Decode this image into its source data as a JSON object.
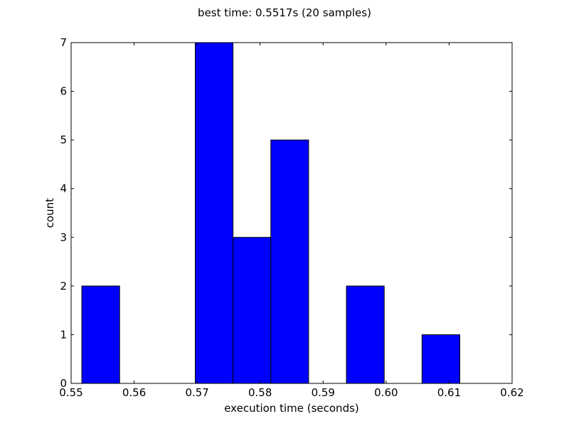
{
  "chart_data": {
    "type": "bar",
    "title": "best time: 0.5517s (20 samples)",
    "xlabel": "execution time (seconds)",
    "ylabel": "count",
    "xlim": [
      0.55,
      0.62
    ],
    "ylim": [
      0,
      7
    ],
    "xticks": [
      "0.55",
      "0.56",
      "0.57",
      "0.58",
      "0.59",
      "0.60",
      "0.61",
      "0.62"
    ],
    "yticks": [
      "0",
      "1",
      "2",
      "3",
      "4",
      "5",
      "6",
      "7"
    ],
    "bins": [
      {
        "start": 0.5517,
        "end": 0.5577,
        "count": 2
      },
      {
        "start": 0.5577,
        "end": 0.5637,
        "count": 0
      },
      {
        "start": 0.5637,
        "end": 0.5697,
        "count": 0
      },
      {
        "start": 0.5697,
        "end": 0.5757,
        "count": 7
      },
      {
        "start": 0.5757,
        "end": 0.5817,
        "count": 3
      },
      {
        "start": 0.5817,
        "end": 0.5877,
        "count": 5
      },
      {
        "start": 0.5877,
        "end": 0.5937,
        "count": 0
      },
      {
        "start": 0.5937,
        "end": 0.5997,
        "count": 2
      },
      {
        "start": 0.5997,
        "end": 0.6057,
        "count": 0
      },
      {
        "start": 0.6057,
        "end": 0.6117,
        "count": 1
      }
    ],
    "bar_color": "#0000ff",
    "edge_color": "#000000",
    "grid": false
  }
}
